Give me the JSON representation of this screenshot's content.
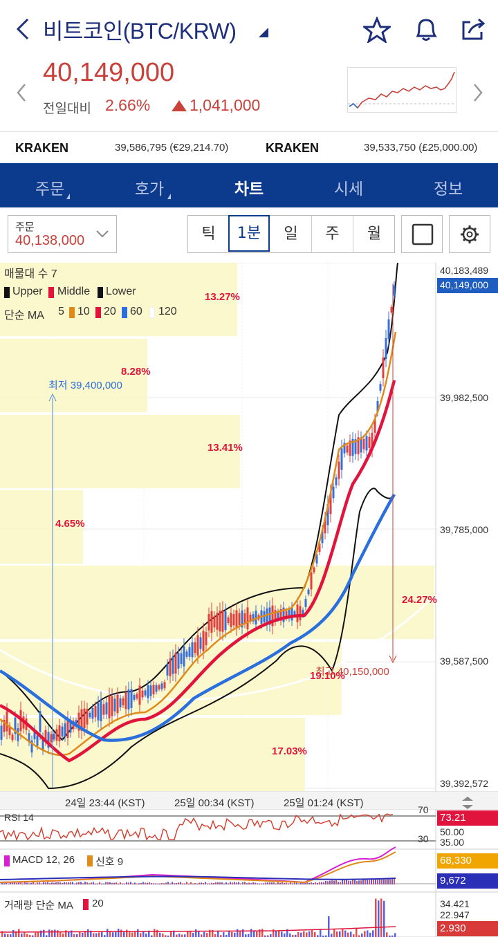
{
  "header": {
    "title": "비트코인(BTC/KRW)",
    "price": "40,149,000",
    "change_label": "전일대비",
    "change_pct": "2.66%",
    "change_amount": "1,041,000"
  },
  "exchanges": [
    {
      "name": "KRAKEN",
      "value": "39,586,795 (€29,214.70)"
    },
    {
      "name": "KRAKEN",
      "value": "39,533,750 (£25,000.00)"
    }
  ],
  "tabs": [
    {
      "label": "주문",
      "active": false
    },
    {
      "label": "호가",
      "active": false
    },
    {
      "label": "차트",
      "active": true
    },
    {
      "label": "시세",
      "active": false
    },
    {
      "label": "정보",
      "active": false
    }
  ],
  "toolbar": {
    "order_label": "주문",
    "order_value": "40,138,000",
    "intervals": [
      "틱",
      "1분",
      "일",
      "주",
      "월"
    ],
    "active_interval": "1분"
  },
  "chart": {
    "volume_profile_label": "매물대 수 7",
    "bollinger_legend": [
      "Upper",
      "Middle",
      "Lower"
    ],
    "ma_label": "단순 MA",
    "ma_periods": [
      "5",
      "10",
      "20",
      "60",
      "120"
    ],
    "profile_pcts": [
      "13.27%",
      "8.28%",
      "13.41%",
      "4.65%",
      "24.27%",
      "19.10%",
      "17.03%"
    ],
    "low_marker": "최저 39,400,000",
    "high_marker": "최고 40,150,000",
    "price_axis": [
      "40,183,489",
      "39,982,500",
      "39,785,000",
      "39,587,500",
      "39,392,572"
    ],
    "current_price_tag": "40,149,000",
    "time_axis": [
      "24일 23:44 (KST)",
      "25일 00:34 (KST)",
      "25일 01:24 (KST)"
    ],
    "rsi_label": "RSI 14",
    "rsi_levels": [
      "70",
      "30"
    ],
    "rsi_value": "73.21",
    "rsi_axis": [
      "50.00",
      "35.00"
    ],
    "macd_label": "MACD 12, 26",
    "signal_label": "신호 9",
    "macd_value": "68,330",
    "signal_value": "9,672",
    "volume_label": "거래량 단순 MA",
    "volume_ma": "20",
    "volume_axis": [
      "34.421",
      "22.947"
    ],
    "volume_value": "2.930"
  },
  "colors": {
    "primary": "#0c3a8c",
    "up": "#c8423b",
    "ma5": "#e08a1a",
    "ma20": "#e0143c",
    "ma60": "#2a6fdb",
    "profile": "#fbf7c4"
  }
}
